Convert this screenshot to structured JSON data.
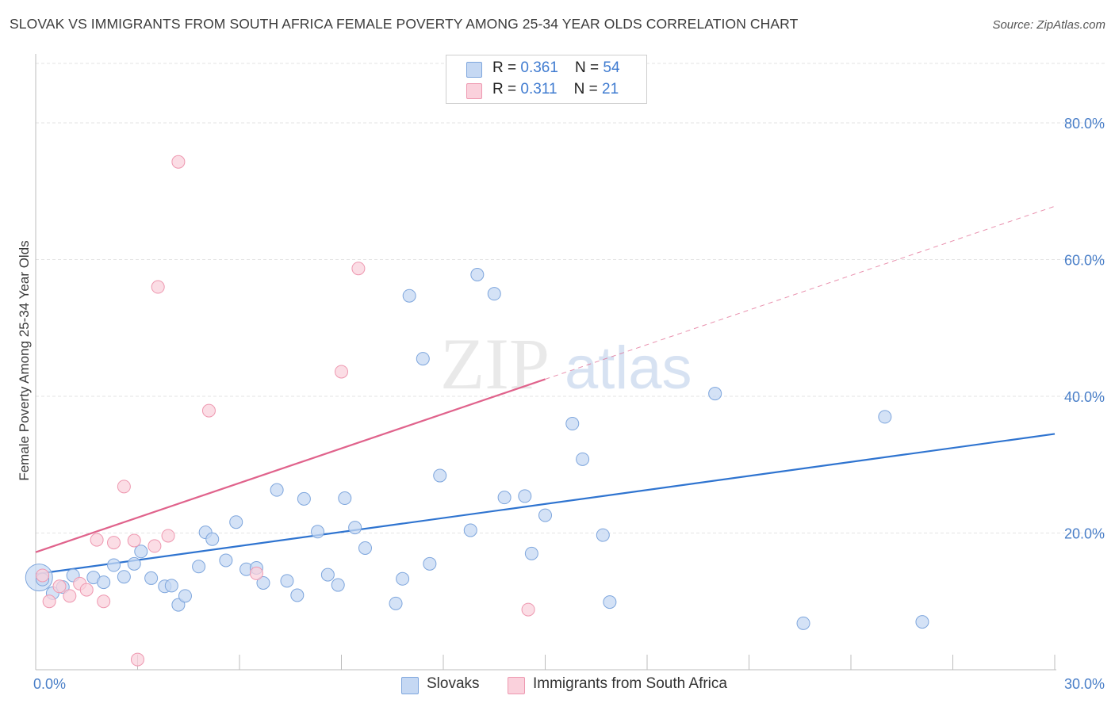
{
  "title": "SLOVAK VS IMMIGRANTS FROM SOUTH AFRICA FEMALE POVERTY AMONG 25-34 YEAR OLDS CORRELATION CHART",
  "source": "Source: ZipAtlas.com",
  "watermark": {
    "zip": "ZIP",
    "atlas": "atlas"
  },
  "legend_top": {
    "rows": [
      {
        "r_label": "R = ",
        "r_value": "0.361",
        "n_label": "N = ",
        "n_value": "54"
      },
      {
        "r_label": "R = ",
        "r_value": "0.311",
        "n_label": "N = ",
        "n_value": "21"
      }
    ]
  },
  "legend_bottom": {
    "items": [
      {
        "label": "Slovaks"
      },
      {
        "label": "Immigrants from South Africa"
      }
    ]
  },
  "colors": {
    "slovaks_fill": "#c5d8f3",
    "slovaks_stroke": "#7ea6dd",
    "slovaks_line": "#2f74d0",
    "sa_fill": "#fad1dc",
    "sa_stroke": "#ee98b0",
    "sa_line": "#e0638c",
    "grid": "#e3e3e3",
    "tick_text": "#4a7fc8"
  },
  "chart_data": {
    "type": "scatter",
    "title": "SLOVAK VS IMMIGRANTS FROM SOUTH AFRICA FEMALE POVERTY AMONG 25-34 YEAR OLDS CORRELATION CHART",
    "xlabel": "",
    "ylabel": "Female Poverty Among 25-34 Year Olds",
    "xlim": [
      0,
      30
    ],
    "ylim": [
      0,
      80
    ],
    "x_tick_labels": [
      "0.0%",
      "30.0%"
    ],
    "y_tick_labels": [
      "20.0%",
      "40.0%",
      "60.0%",
      "80.0%"
    ],
    "y_ticks": [
      20,
      40,
      60,
      80
    ],
    "grid": true,
    "legend_position": "top-center",
    "series": [
      {
        "name": "Slovaks",
        "points": [
          [
            0.2,
            13.2
          ],
          [
            0.5,
            11.2
          ],
          [
            0.8,
            12.1
          ],
          [
            1.1,
            13.8
          ],
          [
            1.7,
            13.5
          ],
          [
            2.3,
            15.3
          ],
          [
            2.0,
            12.8
          ],
          [
            2.6,
            13.6
          ],
          [
            2.9,
            15.5
          ],
          [
            3.1,
            17.3
          ],
          [
            3.8,
            12.2
          ],
          [
            3.4,
            13.4
          ],
          [
            4.0,
            12.3
          ],
          [
            4.2,
            9.5
          ],
          [
            4.4,
            10.8
          ],
          [
            4.8,
            15.1
          ],
          [
            5.0,
            20.1
          ],
          [
            5.2,
            19.1
          ],
          [
            5.6,
            16.0
          ],
          [
            5.9,
            21.6
          ],
          [
            6.2,
            14.7
          ],
          [
            6.5,
            14.9
          ],
          [
            6.7,
            12.7
          ],
          [
            7.1,
            26.3
          ],
          [
            7.4,
            13.0
          ],
          [
            7.7,
            10.9
          ],
          [
            7.9,
            25.0
          ],
          [
            8.3,
            20.2
          ],
          [
            8.6,
            13.9
          ],
          [
            8.9,
            12.4
          ],
          [
            9.1,
            25.1
          ],
          [
            9.4,
            20.8
          ],
          [
            9.7,
            17.8
          ],
          [
            10.6,
            9.7
          ],
          [
            10.8,
            13.3
          ],
          [
            11.0,
            54.7
          ],
          [
            11.4,
            45.5
          ],
          [
            11.6,
            15.5
          ],
          [
            11.9,
            28.4
          ],
          [
            12.8,
            20.4
          ],
          [
            13.0,
            57.8
          ],
          [
            13.5,
            55.0
          ],
          [
            13.8,
            25.2
          ],
          [
            14.4,
            25.4
          ],
          [
            14.6,
            17.0
          ],
          [
            15.0,
            22.6
          ],
          [
            15.8,
            36.0
          ],
          [
            16.1,
            30.8
          ],
          [
            16.7,
            19.7
          ],
          [
            16.9,
            9.9
          ],
          [
            20.0,
            40.4
          ],
          [
            22.6,
            6.8
          ],
          [
            25.0,
            37.0
          ],
          [
            26.1,
            7.0
          ]
        ],
        "trend": {
          "x0": 0,
          "y0": 14.0,
          "x1": 30,
          "y1": 34.5
        }
      },
      {
        "name": "Immigrants from South Africa",
        "points": [
          [
            0.2,
            13.8
          ],
          [
            0.4,
            10.0
          ],
          [
            0.7,
            12.2
          ],
          [
            1.0,
            10.8
          ],
          [
            1.3,
            12.6
          ],
          [
            1.5,
            11.7
          ],
          [
            1.8,
            19.0
          ],
          [
            2.0,
            10.0
          ],
          [
            2.3,
            18.6
          ],
          [
            2.6,
            26.8
          ],
          [
            2.9,
            18.9
          ],
          [
            3.0,
            1.5
          ],
          [
            3.5,
            18.1
          ],
          [
            3.6,
            56.0
          ],
          [
            3.9,
            19.6
          ],
          [
            4.2,
            74.3
          ],
          [
            5.1,
            37.9
          ],
          [
            6.5,
            14.1
          ],
          [
            9.0,
            43.6
          ],
          [
            9.5,
            58.7
          ],
          [
            14.5,
            8.8
          ]
        ],
        "trend": {
          "x0": 0,
          "y0": 17.2,
          "x1": 15,
          "y1": 42.5,
          "dashed_to_x": 30,
          "dashed_to_y": 67.8
        }
      }
    ]
  }
}
